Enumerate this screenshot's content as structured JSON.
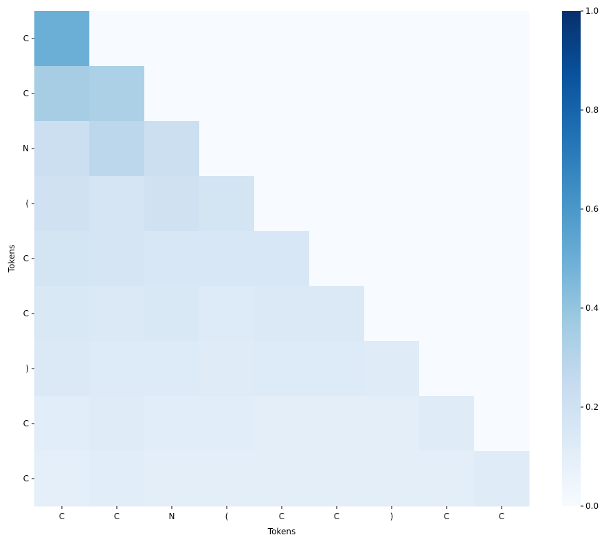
{
  "chart_data": {
    "type": "heatmap",
    "title": "",
    "xlabel": "Tokens",
    "ylabel": "Tokens",
    "x_tick_labels": [
      "C",
      "C",
      "N",
      "(",
      "C",
      "C",
      ")",
      "C",
      "C"
    ],
    "y_tick_labels": [
      "C",
      "C",
      "N",
      "(",
      "C",
      "C",
      ")",
      "C",
      "C"
    ],
    "values": [
      [
        0.5,
        0,
        0,
        0,
        0,
        0,
        0,
        0,
        0
      ],
      [
        0.35,
        0.33,
        0,
        0,
        0,
        0,
        0,
        0,
        0
      ],
      [
        0.22,
        0.28,
        0.22,
        0,
        0,
        0,
        0,
        0,
        0
      ],
      [
        0.2,
        0.17,
        0.2,
        0.18,
        0,
        0,
        0,
        0,
        0
      ],
      [
        0.18,
        0.17,
        0.16,
        0.16,
        0.16,
        0,
        0,
        0,
        0
      ],
      [
        0.15,
        0.14,
        0.15,
        0.13,
        0.14,
        0.14,
        0,
        0,
        0
      ],
      [
        0.14,
        0.13,
        0.13,
        0.12,
        0.13,
        0.13,
        0.12,
        0,
        0
      ],
      [
        0.11,
        0.12,
        0.11,
        0.11,
        0.1,
        0.1,
        0.1,
        0.12,
        0
      ],
      [
        0.09,
        0.11,
        0.1,
        0.1,
        0.1,
        0.1,
        0.1,
        0.1,
        0.12
      ]
    ],
    "colormap": "Blues",
    "vmin": 0.0,
    "vmax": 1.0,
    "colorbar_ticks": [
      "0.0",
      "0.2",
      "0.4",
      "0.6",
      "0.8",
      "1.0"
    ],
    "colorbar_tick_values": [
      0,
      0.2,
      0.4,
      0.6,
      0.8,
      1.0
    ],
    "colorbar_placement": "right"
  }
}
